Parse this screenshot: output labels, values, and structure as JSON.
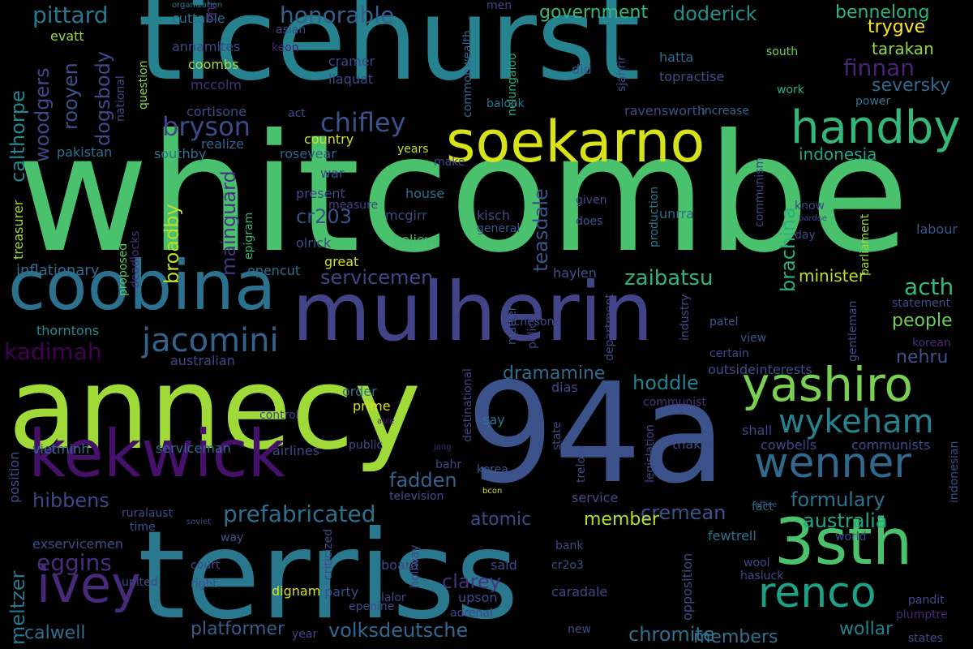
{
  "words": [
    {
      "text": "whitcombe",
      "color": "#4ac16d"
    },
    {
      "text": "ticehurst",
      "color": "#26828e"
    },
    {
      "text": "terriss",
      "color": "#2a788e"
    },
    {
      "text": "94a",
      "color": "#3b528b"
    },
    {
      "text": "annecy",
      "color": "#a0da39"
    },
    {
      "text": "mulherin",
      "color": "#414487"
    },
    {
      "text": "coobina",
      "color": "#2c728e"
    },
    {
      "text": "kekwick",
      "color": "#46116a"
    },
    {
      "text": "soekarno",
      "color": "#d8e219"
    },
    {
      "text": "3sth",
      "color": "#4ac16d"
    },
    {
      "text": "handby",
      "color": "#35b779"
    },
    {
      "text": "yashiro",
      "color": "#7ad151"
    },
    {
      "text": "wenner",
      "color": "#31688e"
    },
    {
      "text": "renco",
      "color": "#1fa187"
    },
    {
      "text": "ivey",
      "color": "#472a7a"
    },
    {
      "text": "wykeham",
      "color": "#26828e"
    },
    {
      "text": "jacomini",
      "color": "#33638d"
    },
    {
      "text": "pittard",
      "color": "#2a788e"
    },
    {
      "text": "bryson",
      "color": "#3e4a89"
    },
    {
      "text": "chifley",
      "color": "#3b528b"
    },
    {
      "text": "honorable",
      "color": "#355f8d"
    },
    {
      "text": "government",
      "color": "#35b779"
    },
    {
      "text": "doderick",
      "color": "#21918c"
    },
    {
      "text": "bennelong",
      "color": "#2db27d"
    },
    {
      "text": "trygve",
      "color": "#fde725"
    },
    {
      "text": "tarakan",
      "color": "#90d743"
    },
    {
      "text": "finnan",
      "color": "#482475"
    },
    {
      "text": "seversky",
      "color": "#31688e"
    },
    {
      "text": "indonesia",
      "color": "#20a486"
    },
    {
      "text": "prefabricated",
      "color": "#2e6f8e"
    },
    {
      "text": "formulary",
      "color": "#2c738e"
    },
    {
      "text": "hibbens",
      "color": "#3f4788"
    },
    {
      "text": "eggins",
      "color": "#472d7b"
    },
    {
      "text": "volksdeutsche",
      "color": "#31688e"
    },
    {
      "text": "chromite",
      "color": "#2d708e"
    },
    {
      "text": "servicemen",
      "color": "#404688"
    },
    {
      "text": "zaibatsu",
      "color": "#2fb47c"
    },
    {
      "text": "minister",
      "color": "#c0df25"
    },
    {
      "text": "acth",
      "color": "#38b977"
    },
    {
      "text": "people",
      "color": "#6ece58"
    },
    {
      "text": "nehru",
      "color": "#3b528b"
    },
    {
      "text": "hoddle",
      "color": "#27808e"
    },
    {
      "text": "dramamine",
      "color": "#2f6b8e"
    },
    {
      "text": "fadden",
      "color": "#32658e"
    },
    {
      "text": "cremean",
      "color": "#3a548c"
    },
    {
      "text": "australia",
      "color": "#21a685"
    },
    {
      "text": "member",
      "color": "#b5de2b"
    },
    {
      "text": "atomic",
      "color": "#3e4989"
    },
    {
      "text": "clarey",
      "color": "#46337e"
    },
    {
      "text": "wollar",
      "color": "#26818e"
    },
    {
      "text": "members",
      "color": "#2d718e"
    },
    {
      "text": "platformer",
      "color": "#355e8d"
    },
    {
      "text": "calwell",
      "color": "#2d718e"
    },
    {
      "text": "kadimah",
      "color": "#440154"
    },
    {
      "text": "cr203",
      "color": "#3b528b"
    },
    {
      "text": "teasdale",
      "color": "#39558c"
    },
    {
      "text": "mainguard",
      "color": "#46337e"
    },
    {
      "text": "broadby",
      "color": "#bade28"
    },
    {
      "text": "brachina",
      "color": "#2ab07f"
    },
    {
      "text": "woodgers",
      "color": "#3f4889"
    },
    {
      "text": "rooyen",
      "color": "#3b518b"
    },
    {
      "text": "dogsbody",
      "color": "#3e4a89"
    },
    {
      "text": "calthorpe",
      "color": "#24868e"
    },
    {
      "text": "meltzer",
      "color": "#2a768e"
    },
    {
      "text": "inflationary",
      "color": "#2e6e8e"
    },
    {
      "text": "thorntons",
      "color": "#23898e"
    },
    {
      "text": "australian",
      "color": "#3f4889"
    },
    {
      "text": "treasurer",
      "color": "#a5db36"
    },
    {
      "text": "pakistan",
      "color": "#2c718e"
    },
    {
      "text": "southby",
      "color": "#2c728e"
    },
    {
      "text": "cortisone",
      "color": "#3e4c8a"
    },
    {
      "text": "coombs",
      "color": "#a8db34"
    },
    {
      "text": "mccolm",
      "color": "#46337e"
    },
    {
      "text": "annamites",
      "color": "#3e4989"
    },
    {
      "text": "cuttable",
      "color": "#2e6e8e"
    },
    {
      "text": "mr",
      "color": "#482071"
    },
    {
      "text": "evatt",
      "color": "#9bd93c"
    },
    {
      "text": "asian",
      "color": "#3d4e8a"
    },
    {
      "text": "keon",
      "color": "#482475"
    },
    {
      "text": "cramer",
      "color": "#3f4788"
    },
    {
      "text": "liaquat",
      "color": "#3e4a89"
    },
    {
      "text": "commonwealth",
      "color": "#31688e"
    },
    {
      "text": "men",
      "color": "#3f4889"
    },
    {
      "text": "organization",
      "color": "#2a768e"
    },
    {
      "text": "national",
      "color": "#3e4a89"
    },
    {
      "text": "question",
      "color": "#8bd646"
    },
    {
      "text": "act",
      "color": "#3d4d8a"
    },
    {
      "text": "realize",
      "color": "#33638d"
    },
    {
      "text": "country",
      "color": "#d2e21b"
    },
    {
      "text": "rosevear",
      "color": "#33638d"
    },
    {
      "text": "years",
      "color": "#bddf26"
    },
    {
      "text": "make",
      "color": "#3e4c8a"
    },
    {
      "text": "war",
      "color": "#3d4e8a"
    },
    {
      "text": "house",
      "color": "#2c718e"
    },
    {
      "text": "present",
      "color": "#414487"
    },
    {
      "text": "measure",
      "color": "#433e85"
    },
    {
      "text": "epigram",
      "color": "#35b779"
    },
    {
      "text": "olrick",
      "color": "#3c4f8a"
    },
    {
      "text": "mcgirr",
      "color": "#3e4a89"
    },
    {
      "text": "believe",
      "color": "#42be71"
    },
    {
      "text": "opencut",
      "color": "#2e6f8e"
    },
    {
      "text": "great",
      "color": "#d2e21b"
    },
    {
      "text": "proposed",
      "color": "#5cc863"
    },
    {
      "text": "deadlocks",
      "color": "#46337e"
    },
    {
      "text": "nelungaloo",
      "color": "#27ad81"
    },
    {
      "text": "balook",
      "color": "#2a788e"
    },
    {
      "text": "did",
      "color": "#38588c"
    },
    {
      "text": "sjahrir",
      "color": "#3b528b"
    },
    {
      "text": "hatta",
      "color": "#2f6c8e"
    },
    {
      "text": "topractise",
      "color": "#3d4e8a"
    },
    {
      "text": "unrra",
      "color": "#2f6c8e"
    },
    {
      "text": "ravensworth",
      "color": "#3e4c8a"
    },
    {
      "text": "increase",
      "color": "#31668e"
    },
    {
      "text": "work",
      "color": "#29af7f"
    },
    {
      "text": "power",
      "color": "#2c728e"
    },
    {
      "text": "south",
      "color": "#73d056"
    },
    {
      "text": "kisch",
      "color": "#3e4a89"
    },
    {
      "text": "general",
      "color": "#39568c"
    },
    {
      "text": "given",
      "color": "#3e4c8a"
    },
    {
      "text": "does",
      "color": "#3b528b"
    },
    {
      "text": "production",
      "color": "#2a788e"
    },
    {
      "text": "communism",
      "color": "#3f4788"
    },
    {
      "text": "know",
      "color": "#404588"
    },
    {
      "text": "pardoe",
      "color": "#3f4889"
    },
    {
      "text": "day",
      "color": "#3e4a89"
    },
    {
      "text": "parliament",
      "color": "#a0da39"
    },
    {
      "text": "labour",
      "color": "#38588c"
    },
    {
      "text": "haylen",
      "color": "#3b528b"
    },
    {
      "text": "matter",
      "color": "#3c508b"
    },
    {
      "text": "acheson",
      "color": "#3e4989"
    },
    {
      "text": "policy",
      "color": "#414487"
    },
    {
      "text": "department",
      "color": "#3f4788"
    },
    {
      "text": "industry",
      "color": "#3d4d8a"
    },
    {
      "text": "patel",
      "color": "#38598c"
    },
    {
      "text": "view",
      "color": "#3b528b"
    },
    {
      "text": "certain",
      "color": "#3f4889"
    },
    {
      "text": "outsideinterests",
      "color": "#3e4c8a"
    },
    {
      "text": "gentleman",
      "color": "#3e4c8a"
    },
    {
      "text": "statement",
      "color": "#3d4e8a"
    },
    {
      "text": "korean",
      "color": "#472a7a"
    },
    {
      "text": "destinational",
      "color": "#414487"
    },
    {
      "text": "dias",
      "color": "#3e4a89"
    },
    {
      "text": "communist",
      "color": "#46337e"
    },
    {
      "text": "order",
      "color": "#2c728e"
    },
    {
      "text": "prime",
      "color": "#d8e219"
    },
    {
      "text": "able",
      "color": "#482475"
    },
    {
      "text": "control",
      "color": "#3e4989"
    },
    {
      "text": "vietminh",
      "color": "#2c718e"
    },
    {
      "text": "serviceman",
      "color": "#31688e"
    },
    {
      "text": "airlines",
      "color": "#3f4889"
    },
    {
      "text": "public",
      "color": "#3f4889"
    },
    {
      "text": "jang",
      "color": "#482878"
    },
    {
      "text": "bahr",
      "color": "#3e4a89"
    },
    {
      "text": "say",
      "color": "#2c728e"
    },
    {
      "text": "state",
      "color": "#3e4a89"
    },
    {
      "text": "legislation",
      "color": "#3e4989"
    },
    {
      "text": "thakin",
      "color": "#3d4e8a"
    },
    {
      "text": "shall",
      "color": "#3e4a89"
    },
    {
      "text": "cowbells",
      "color": "#3f4889"
    },
    {
      "text": "communists",
      "color": "#3e4c8a"
    },
    {
      "text": "korea",
      "color": "#38588c"
    },
    {
      "text": "television",
      "color": "#3d4e8a"
    },
    {
      "text": "bcon",
      "color": "#c8e020"
    },
    {
      "text": "service",
      "color": "#3e4c8a"
    },
    {
      "text": "treloar",
      "color": "#3e4a89"
    },
    {
      "text": "fact",
      "color": "#2c728e"
    },
    {
      "text": "office",
      "color": "#3b528b"
    },
    {
      "text": "indonesian",
      "color": "#3d4e8a"
    },
    {
      "text": "position",
      "color": "#3e4c8a"
    },
    {
      "text": "ruralaust",
      "color": "#3e4c8a"
    },
    {
      "text": "soviet",
      "color": "#3e4a89"
    },
    {
      "text": "time",
      "color": "#3b528b"
    },
    {
      "text": "way",
      "color": "#3b528b"
    },
    {
      "text": "exservicemen",
      "color": "#3e4c8a"
    },
    {
      "text": "criticized",
      "color": "#3e4a89"
    },
    {
      "text": "hollway",
      "color": "#3e4a89"
    },
    {
      "text": "bank",
      "color": "#3e4a89"
    },
    {
      "text": "fewtrell",
      "color": "#2c728e"
    },
    {
      "text": "world",
      "color": "#3f4889"
    },
    {
      "text": "court",
      "color": "#3e4a89"
    },
    {
      "text": "board",
      "color": "#3e4a89"
    },
    {
      "text": "said",
      "color": "#3e4a89"
    },
    {
      "text": "cr2o3",
      "color": "#3b528b"
    },
    {
      "text": "wool",
      "color": "#3e4a89"
    },
    {
      "text": "hasluck",
      "color": "#3e4a89"
    },
    {
      "text": "united",
      "color": "#3e4a89"
    },
    {
      "text": "right",
      "color": "#3b528b"
    },
    {
      "text": "dignam",
      "color": "#d8e219"
    },
    {
      "text": "party",
      "color": "#3d4e8a"
    },
    {
      "text": "lalor",
      "color": "#3e4a89"
    },
    {
      "text": "upson",
      "color": "#3e4a89"
    },
    {
      "text": "caradale",
      "color": "#3e4a89"
    },
    {
      "text": "opposition",
      "color": "#3e4a89"
    },
    {
      "text": "pandit",
      "color": "#3e4a89"
    },
    {
      "text": "plumptre",
      "color": "#482878"
    },
    {
      "text": "epenine",
      "color": "#3e4c8a"
    },
    {
      "text": "adrenal",
      "color": "#3e4a89"
    },
    {
      "text": "year",
      "color": "#3f4889"
    },
    {
      "text": "new",
      "color": "#3e4a89"
    },
    {
      "text": "states",
      "color": "#3e4a89"
    }
  ]
}
